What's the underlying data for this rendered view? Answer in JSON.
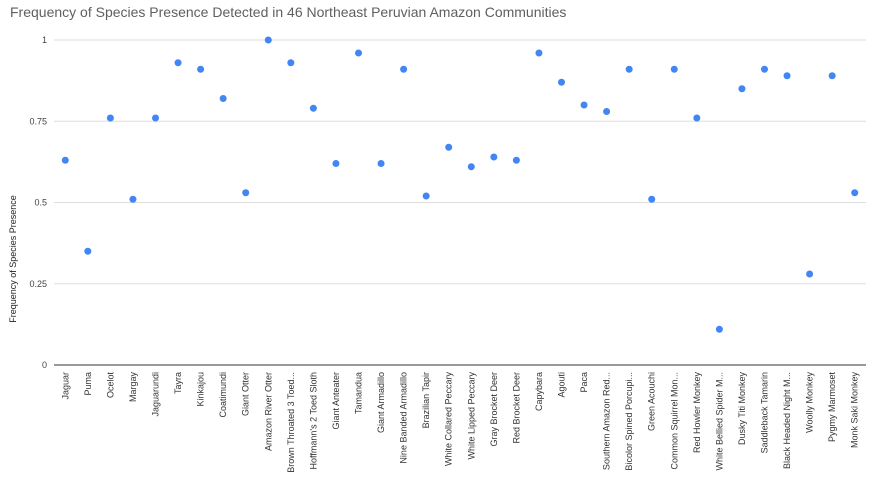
{
  "chart_data": {
    "type": "scatter",
    "title": "Frequency of Species Presence Detected in 46 Northeast Peruvian Amazon Communities",
    "xlabel": "",
    "ylabel": "Frequency of Species Presence",
    "ylim": [
      0,
      1
    ],
    "yticks": [
      "0",
      "0.25",
      "0.5",
      "0.75",
      "1"
    ],
    "grid": true,
    "legend": "none",
    "point_color": "#4285f4",
    "categories": [
      "Jaguar",
      "Puma",
      "Ocelot",
      "Margay",
      "Jaguarundi",
      "Tayra",
      "Kinkajou",
      "Coatimundi",
      "Giant Otter",
      "Amazon River Otter",
      "Brown Throated 3 Toed...",
      "Hoffmann's 2 Toed Sloth",
      "Giant Anteater",
      "Tamandua",
      "Giant Armadillo",
      "Nine Banded Armadillo",
      "Brazilian Tapir",
      "White Collared Peccary",
      "White Lipped Peccary",
      "Gray Brocket Deer",
      "Red Brocket Deer",
      "Capybara",
      "Agouti",
      "Paca",
      "Southern Amazon Red...",
      "Bicolor Spined Porcupi...",
      "Green Acouchi",
      "Common Squirrel Mon...",
      "Red Howler Monkey",
      "White Bellied Spider M...",
      "Dusky Titi Monkey",
      "Saddleback Tamarin",
      "Black Headed Night M...",
      "Woolly Monkey",
      "Pygmy Marmoset",
      "Monk Saki Monkey"
    ],
    "values": [
      0.63,
      0.35,
      0.76,
      0.51,
      0.76,
      0.93,
      0.91,
      0.82,
      0.53,
      1.0,
      0.93,
      0.79,
      0.62,
      0.96,
      0.62,
      0.91,
      0.52,
      0.67,
      0.61,
      0.64,
      0.63,
      0.96,
      0.87,
      0.8,
      0.78,
      0.91,
      0.51,
      0.91,
      0.76,
      0.11,
      0.85,
      0.91,
      0.89,
      0.28,
      0.89,
      0.53
    ]
  }
}
